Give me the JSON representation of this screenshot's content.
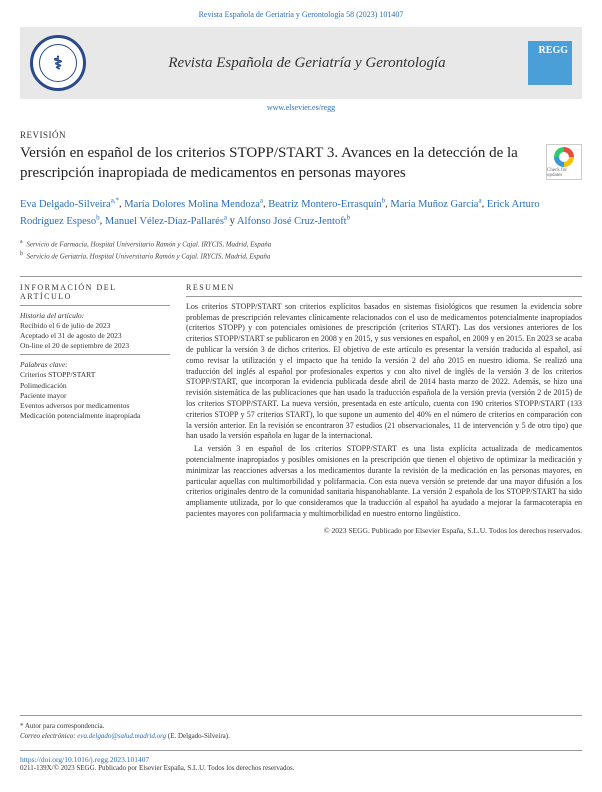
{
  "journal": {
    "citation_line": "Revista Española de Geriatría y Gerontología 58 (2023) 101407",
    "title": "Revista Española de Geriatría y Gerontología",
    "url": "www.elsevier.es/regg",
    "regg_label": "REGG"
  },
  "article": {
    "type": "REVISIÓN",
    "title": "Versión en español de los criterios STOPP/START 3. Avances en la detección de la prescripción inapropiada de medicamentos en personas mayores",
    "check_label": "Check for updates"
  },
  "authors": [
    {
      "name": "Eva Delgado-Silveira",
      "aff": "a,*"
    },
    {
      "name": "María Dolores Molina Mendoza",
      "aff": "a"
    },
    {
      "name": "Beatriz Montero-Errasquín",
      "aff": "b"
    },
    {
      "name": "María Muñoz García",
      "aff": "a"
    },
    {
      "name": "Erick Arturo Rodríguez Espeso",
      "aff": "b"
    },
    {
      "name": "Manuel Vélez-Díaz-Pallarés",
      "aff": "a"
    },
    {
      "name": "Alfonso José Cruz-Jentoft",
      "aff": "b"
    }
  ],
  "affiliations": [
    {
      "sup": "a",
      "text": "Servicio de Farmacia, Hospital Universitario Ramón y Cajal. IRYCIS, Madrid, España"
    },
    {
      "sup": "b",
      "text": "Servicio de Geriatría, Hospital Universitario Ramón y Cajal. IRYCIS, Madrid, España"
    }
  ],
  "info": {
    "heading": "INFORMACIÓN DEL ARTÍCULO",
    "history_label": "Historia del artículo:",
    "received": "Recibido el 6 de julio de 2023",
    "accepted": "Aceptado el 31 de agosto de 2023",
    "online": "On-line el 20 de septiembre de 2023",
    "keywords_label": "Palabras clave:",
    "keywords": [
      "Criterios STOPP/START",
      "Polimedicación",
      "Paciente mayor",
      "Eventos adversos por medicamentos",
      "Medicación potencialmente inapropiada"
    ]
  },
  "abstract": {
    "heading": "RESUMEN",
    "p1": "Los criterios STOPP/START son criterios explícitos basados en sistemas fisiológicos que resumen la evidencia sobre problemas de prescripción relevantes clínicamente relacionados con el uso de medicamentos potencialmente inapropiados (criterios STOPP) y con potenciales omisiones de prescripción (criterios START). Las dos versiones anteriores de los criterios STOPP/START se publicaron en 2008 y en 2015, y sus versiones en español, en 2009 y en 2015. En 2023 se acaba de publicar la versión 3 de dichos criterios. El objetivo de este artículo es presentar la versión traducida al español, así como revisar la utilización y el impacto que ha tenido la versión 2 del año 2015 en nuestro idioma. Se realizó una traducción del inglés al español por profesionales expertos y con alto nivel de inglés de la versión 3 de los criterios STOPP/START, que incorporan la evidencia publicada desde abril de 2014 hasta marzo de 2022. Además, se hizo una revisión sistemática de las publicaciones que han usado la traducción española de la versión previa (versión 2 de 2015) de los criterios STOPP/START. La nueva versión, presentada en este artículo, cuenta con 190 criterios STOPP/START (133 criterios STOPP y 57 criterios START), lo que supone un aumento del 40% en el número de criterios en comparación con la versión anterior. En la revisión se encontraron 37 estudios (21 observacionales, 11 de intervención y 5 de otro tipo) que han usado la versión española en lugar de la internacional.",
    "p2": "La versión 3 en español de los criterios STOPP/START es una lista explícita actualizada de medicamentos potencialmente inapropiados y posibles omisiones en la prescripción que tienen el objetivo de optimizar la medicación y minimizar las reacciones adversas a los medicamentos durante la revisión de la medicación en las personas mayores, en particular aquellas con multimorbilidad y polifarmacia. Con esta nueva versión se pretende dar una mayor difusión a los criterios originales dentro de la comunidad sanitaria hispanohablante. La versión 2 española de los STOPP/START ha sido ampliamente utilizada, por lo que consideramos que la traducción al español ha ayudado a mejorar la farmacoterapia en pacientes mayores con polifarmacia y multimorbilidad en nuestro entorno lingüístico.",
    "copyright": "© 2023 SEGG. Publicado por Elsevier España, S.L.U. Todos los derechos reservados."
  },
  "footer": {
    "corresp_label": "* Autor para correspondencia.",
    "email_label": "Correo electrónico:",
    "email": "eva.delgado@salud.madrid.org",
    "email_name": "(E. Delgado-Silveira).",
    "doi": "https://doi.org/10.1016/j.regg.2023.101407",
    "issn_line": "0211-139X/© 2023 SEGG. Publicado por Elsevier España, S.L.U. Todos los derechos reservados."
  },
  "colors": {
    "link_blue": "#2a6ebb",
    "header_bg": "#e8e8e8",
    "logo_blue": "#2a4a8a",
    "regg_bg": "#4a9fd8",
    "text": "#333333",
    "rule": "#999999"
  }
}
